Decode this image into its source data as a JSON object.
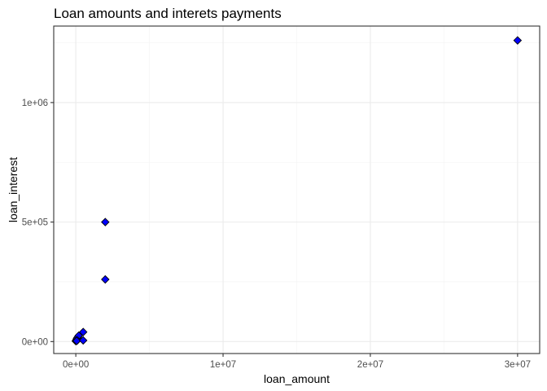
{
  "chart_data": {
    "type": "scatter",
    "title": "Loan amounts and interets payments",
    "xlabel": "loan_amount",
    "ylabel": "loan_interest",
    "xlim": [
      -1500000,
      31500000
    ],
    "ylim": [
      -50000,
      1320000
    ],
    "x_ticks": [
      {
        "value": 0,
        "label": "0e+00"
      },
      {
        "value": 10000000,
        "label": "1e+07"
      },
      {
        "value": 20000000,
        "label": "2e+07"
      },
      {
        "value": 30000000,
        "label": "3e+07"
      }
    ],
    "y_ticks": [
      {
        "value": 0,
        "label": "0e+00"
      },
      {
        "value": 500000,
        "label": "5e+05"
      },
      {
        "value": 1000000,
        "label": "1e+06"
      }
    ],
    "grid": true,
    "theme": "bw",
    "marker": "diamond",
    "point_fill": "#0000ff",
    "point_stroke": "#000000",
    "points": [
      {
        "x": 0,
        "y": 2000
      },
      {
        "x": 20000,
        "y": 4000
      },
      {
        "x": 50000,
        "y": 8000
      },
      {
        "x": 80000,
        "y": 12000
      },
      {
        "x": 100000,
        "y": 15000
      },
      {
        "x": 150000,
        "y": 20000
      },
      {
        "x": 200000,
        "y": 25000
      },
      {
        "x": 100000,
        "y": 5000
      },
      {
        "x": 60000,
        "y": 3000
      },
      {
        "x": 500000,
        "y": 40000
      },
      {
        "x": 500000,
        "y": 5000
      },
      {
        "x": 2000000,
        "y": 260000
      },
      {
        "x": 2000000,
        "y": 500000
      },
      {
        "x": 30000000,
        "y": 1260000
      }
    ]
  }
}
